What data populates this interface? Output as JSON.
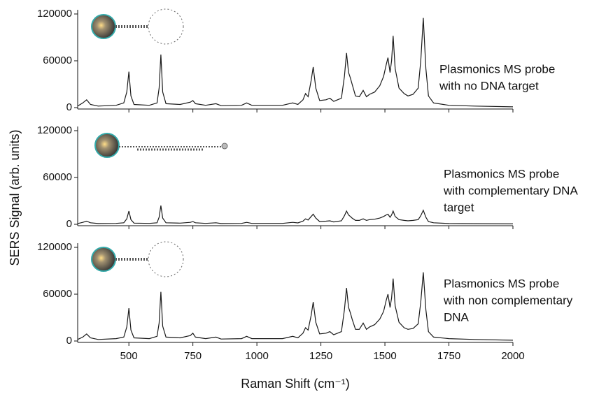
{
  "chart_data": [
    {
      "type": "line",
      "color": "#1a1a1a",
      "annotation": [
        "Plasmonics MS probe",
        "with no DNA target"
      ],
      "xlim": [
        300,
        2000
      ],
      "ylim": [
        0,
        120000
      ],
      "yticks": [
        0,
        60000,
        120000
      ],
      "x": [
        300,
        320,
        335,
        350,
        380,
        450,
        480,
        492,
        500,
        508,
        520,
        580,
        610,
        618,
        625,
        632,
        645,
        700,
        740,
        750,
        760,
        800,
        840,
        860,
        940,
        960,
        980,
        1100,
        1140,
        1160,
        1180,
        1190,
        1200,
        1212,
        1220,
        1230,
        1245,
        1270,
        1285,
        1300,
        1330,
        1342,
        1350,
        1358,
        1365,
        1372,
        1385,
        1400,
        1415,
        1428,
        1440,
        1460,
        1480,
        1495,
        1505,
        1512,
        1520,
        1526,
        1532,
        1540,
        1555,
        1575,
        1590,
        1610,
        1630,
        1640,
        1650,
        1660,
        1670,
        1690,
        1750,
        1850,
        2000
      ],
      "values": [
        2000,
        6000,
        10000,
        4000,
        2000,
        3000,
        6000,
        20000,
        46000,
        15000,
        4000,
        3000,
        6000,
        25000,
        68000,
        20000,
        5000,
        4000,
        7000,
        9000,
        5000,
        3000,
        5000,
        2500,
        3000,
        6000,
        3000,
        3000,
        6000,
        4000,
        10000,
        18000,
        14000,
        35000,
        52000,
        25000,
        9000,
        10000,
        12000,
        8000,
        12000,
        40000,
        70000,
        45000,
        38000,
        30000,
        15000,
        14000,
        22000,
        14000,
        17000,
        20000,
        28000,
        40000,
        55000,
        64000,
        45000,
        60000,
        92000,
        50000,
        25000,
        18000,
        15000,
        17000,
        25000,
        60000,
        115000,
        50000,
        15000,
        6000,
        3000,
        2000,
        1000
      ]
    },
    {
      "type": "line",
      "color": "#1a1a1a",
      "annotation": [
        "Plasmonics MS probe",
        "with complementary DNA",
        "target"
      ],
      "ylabel": "SERS Signal (arb. units)",
      "xlim": [
        300,
        2000
      ],
      "ylim": [
        0,
        120000
      ],
      "yticks": [
        0,
        60000,
        120000
      ],
      "x": [
        300,
        320,
        335,
        350,
        380,
        450,
        480,
        492,
        500,
        508,
        520,
        580,
        610,
        618,
        625,
        632,
        645,
        700,
        740,
        750,
        760,
        800,
        840,
        860,
        940,
        960,
        980,
        1100,
        1140,
        1160,
        1180,
        1190,
        1200,
        1212,
        1220,
        1230,
        1245,
        1270,
        1285,
        1300,
        1330,
        1342,
        1350,
        1358,
        1365,
        1372,
        1385,
        1400,
        1415,
        1428,
        1440,
        1460,
        1480,
        1495,
        1505,
        1512,
        1520,
        1526,
        1532,
        1540,
        1555,
        1575,
        1590,
        1610,
        1630,
        1640,
        1650,
        1660,
        1670,
        1690,
        1750,
        1850,
        2000
      ],
      "values": [
        1000,
        2500,
        4000,
        2000,
        1000,
        1200,
        2000,
        7000,
        17000,
        6000,
        1500,
        1200,
        2000,
        9000,
        24000,
        8000,
        2000,
        1500,
        2500,
        3500,
        2000,
        1200,
        2000,
        1000,
        1200,
        2500,
        1200,
        1200,
        2500,
        1800,
        4000,
        7000,
        5500,
        10000,
        13000,
        8000,
        3500,
        4000,
        4500,
        3000,
        4500,
        11000,
        17000,
        12000,
        10000,
        8000,
        5000,
        5000,
        7000,
        5000,
        6000,
        6500,
        8000,
        10000,
        12000,
        13000,
        9000,
        12000,
        17000,
        10000,
        6000,
        5000,
        4500,
        5000,
        6000,
        11000,
        18000,
        9000,
        3500,
        2000,
        1000,
        800,
        500
      ]
    },
    {
      "type": "line",
      "color": "#1a1a1a",
      "annotation": [
        "Plasmonics MS probe",
        "with non complementary",
        "DNA"
      ],
      "xlabel": "Raman Shift (cm⁻¹)",
      "xlim": [
        300,
        2000
      ],
      "ylim": [
        0,
        120000
      ],
      "yticks": [
        0,
        60000,
        120000
      ],
      "xticks": [
        500,
        750,
        1000,
        1250,
        1500,
        1750,
        2000
      ],
      "x": [
        300,
        320,
        335,
        350,
        380,
        450,
        480,
        492,
        500,
        508,
        520,
        580,
        610,
        618,
        625,
        632,
        645,
        700,
        740,
        750,
        760,
        800,
        840,
        860,
        940,
        960,
        980,
        1100,
        1140,
        1160,
        1180,
        1190,
        1200,
        1212,
        1220,
        1230,
        1245,
        1270,
        1285,
        1300,
        1330,
        1342,
        1350,
        1358,
        1365,
        1372,
        1385,
        1400,
        1415,
        1428,
        1440,
        1460,
        1480,
        1495,
        1505,
        1512,
        1520,
        1526,
        1532,
        1540,
        1555,
        1575,
        1590,
        1610,
        1630,
        1640,
        1650,
        1660,
        1670,
        1690,
        1750,
        1850,
        2000
      ],
      "values": [
        2000,
        5000,
        9000,
        4000,
        2000,
        3000,
        5000,
        18000,
        42000,
        14000,
        4000,
        3000,
        6000,
        23000,
        63000,
        19000,
        5000,
        4000,
        7000,
        10000,
        5000,
        3000,
        5000,
        2500,
        3000,
        6000,
        3000,
        3000,
        6000,
        4000,
        10000,
        17000,
        14000,
        33000,
        50000,
        24000,
        9000,
        10000,
        12000,
        8000,
        12000,
        40000,
        68000,
        43000,
        36000,
        28000,
        15000,
        15000,
        23000,
        15000,
        18000,
        21000,
        28000,
        38000,
        52000,
        60000,
        43000,
        55000,
        80000,
        45000,
        24000,
        17000,
        15000,
        16000,
        22000,
        50000,
        88000,
        40000,
        12000,
        5000,
        3000,
        2000,
        1000
      ]
    }
  ]
}
